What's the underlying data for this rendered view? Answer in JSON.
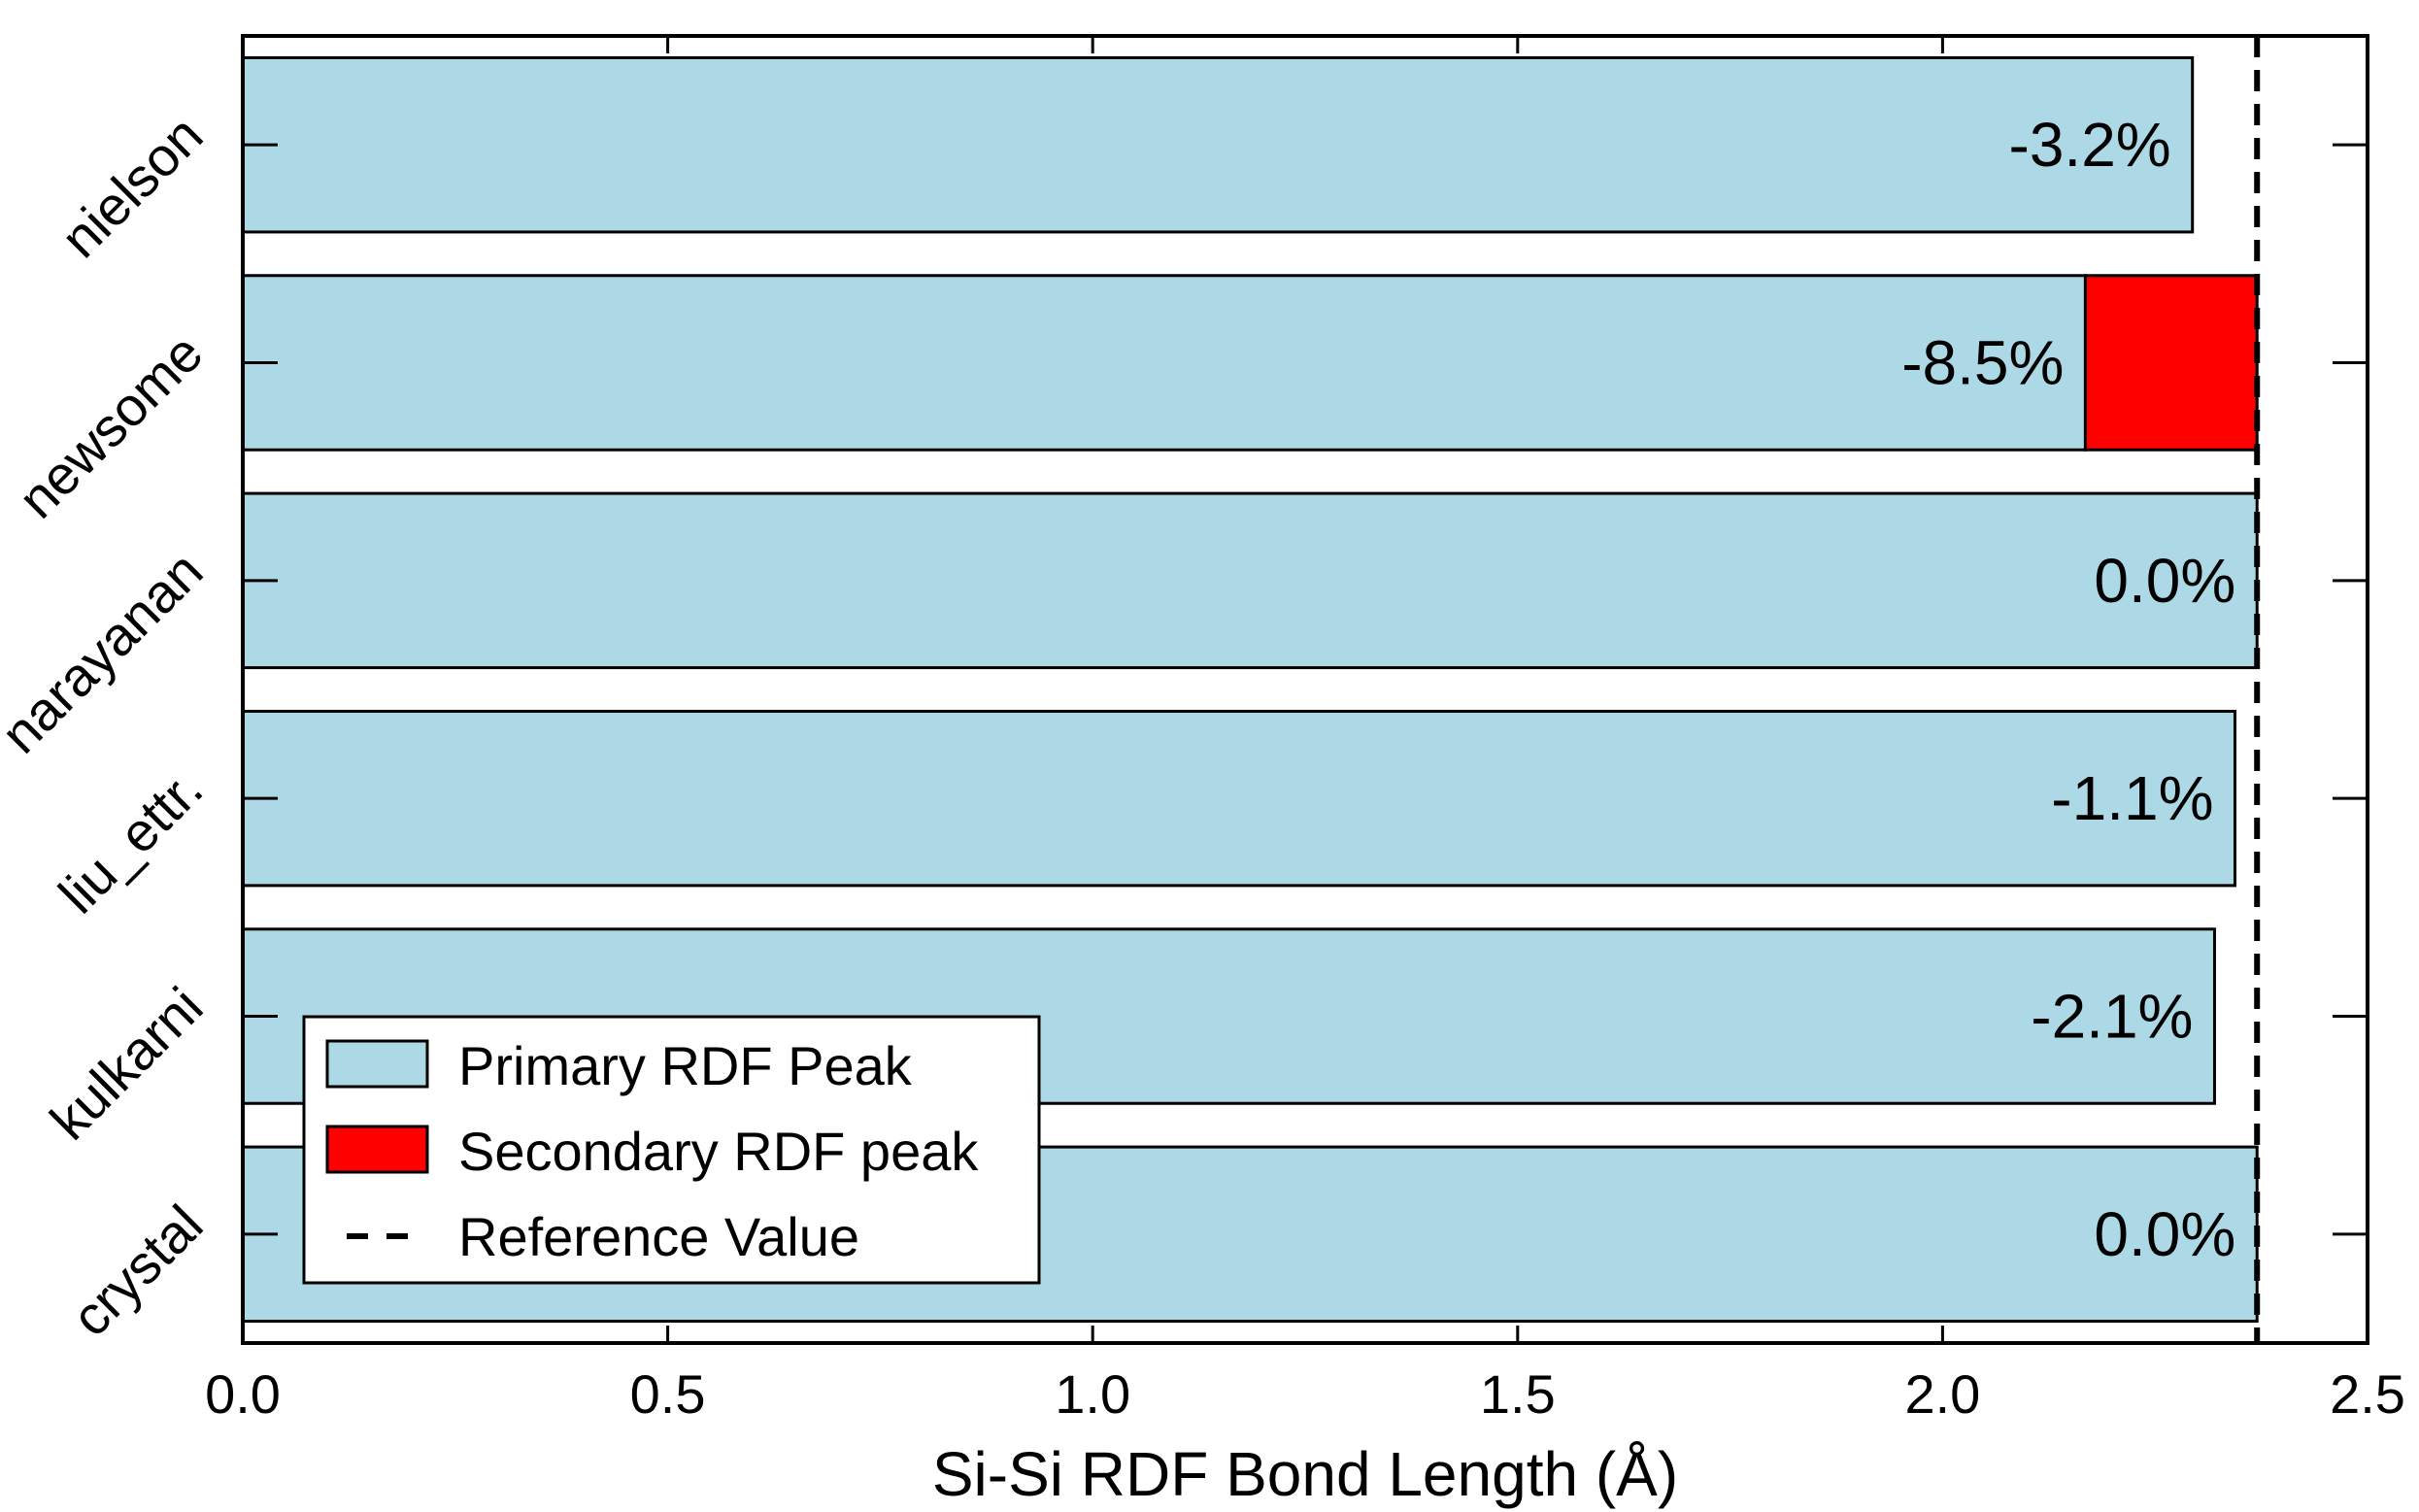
{
  "chart_data": {
    "type": "bar",
    "orientation": "horizontal",
    "categories": [
      "crystal",
      "kulkarni",
      "liu_ettr.",
      "narayanan",
      "newsome",
      "nielson"
    ],
    "series": [
      {
        "name": "Primary RDF Peak",
        "color": "#add8e6",
        "values": [
          2.37,
          2.32,
          2.344,
          2.37,
          2.168,
          2.294
        ]
      },
      {
        "name": "Secondary RDF peak",
        "color": "#ff0000",
        "values": [
          null,
          null,
          null,
          null,
          2.37,
          null
        ]
      }
    ],
    "labels": [
      "0.0%",
      "-2.1%",
      "-1.1%",
      "0.0%",
      "-8.5%",
      "-3.2%"
    ],
    "reference": {
      "name": "Reference Value",
      "value": 2.37,
      "style": "dashed",
      "color": "#000000"
    },
    "xlabel": "Si-Si RDF Bond Length (Å)",
    "ylabel": "",
    "xlim": [
      0.0,
      2.5
    ],
    "xticks": [
      "0.0",
      "0.5",
      "1.0",
      "1.5",
      "2.0",
      "2.5"
    ],
    "grid": false,
    "legend_position": "lower-left"
  }
}
